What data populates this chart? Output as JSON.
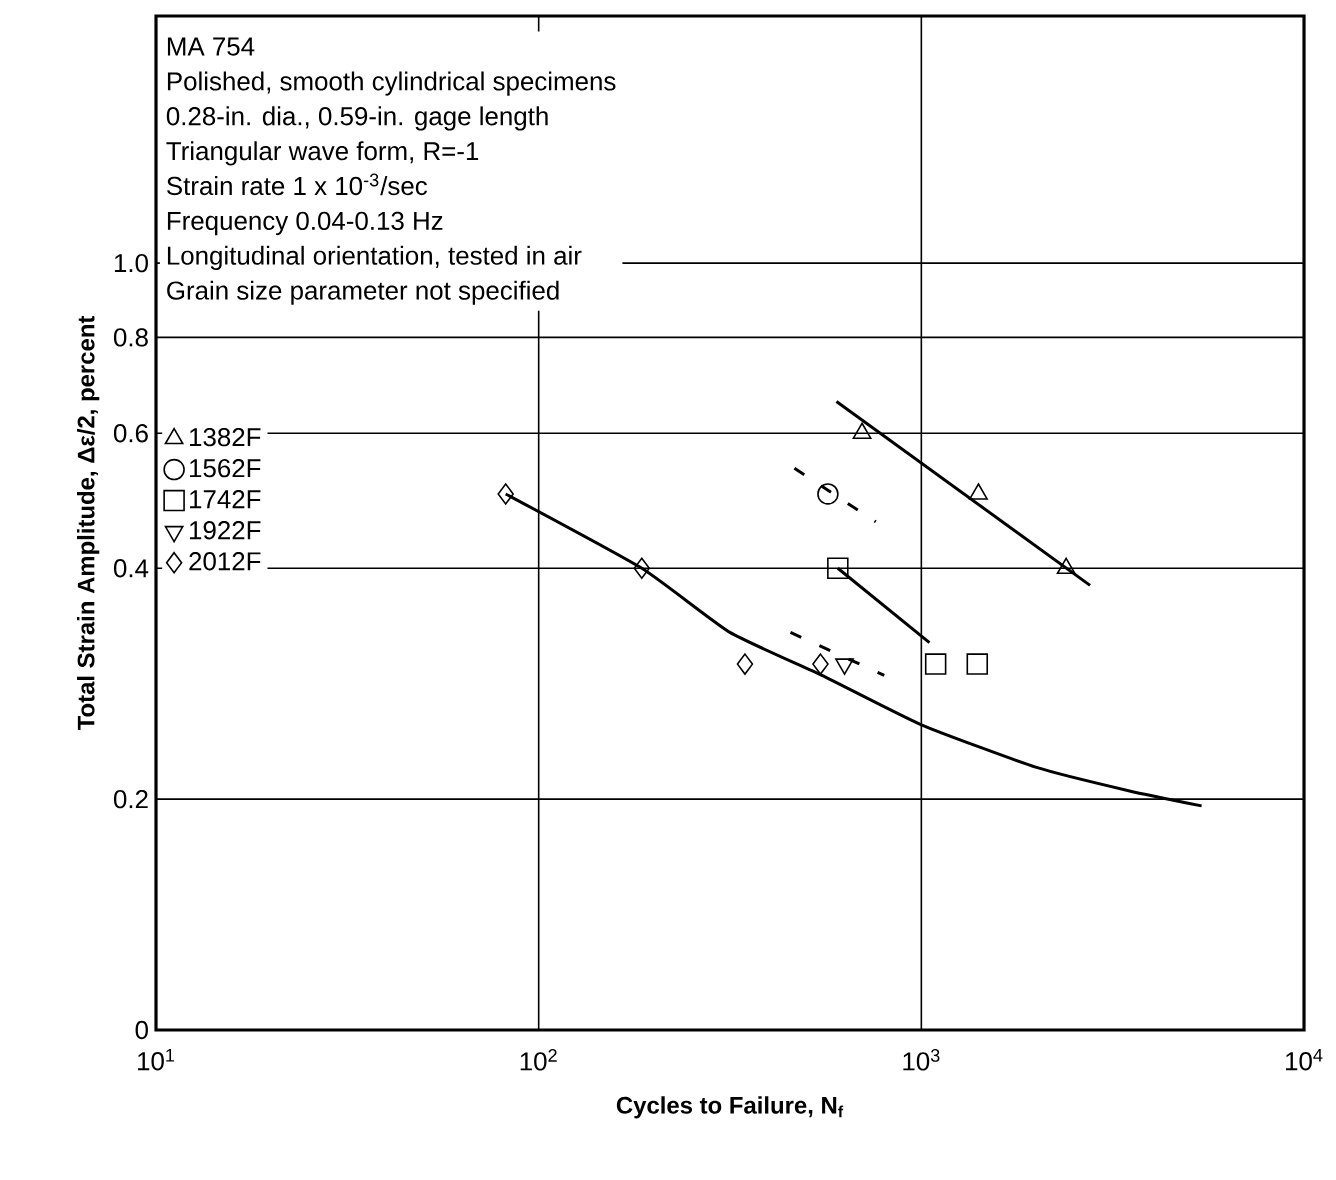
{
  "chart_data": {
    "type": "scatter",
    "xlabel": "Cycles to Failure, N$_{f}$",
    "ylabel": "Total Strain Amplitude, Δε/2, percent",
    "annotations": [
      "MA 754",
      "Polished, smooth cylindrical specimens",
      "0.28-in. dia., 0.59-in. gage length",
      "Triangular wave form, R=-1",
      "Strain rate 1 x 10$^{-3}$/sec",
      "Frequency 0.04-0.13 Hz",
      "Longitudinal orientation, tested in air",
      "Grain size parameter not specified"
    ],
    "log": "xy",
    "grid": true,
    "legend": "top left",
    "xlim": [
      10,
      10000
    ],
    "ylim": [
      0.1,
      2.1
    ],
    "xticks": [
      {
        "value": 10,
        "label": "10$^{1}$"
      },
      {
        "value": 100,
        "label": "10$^{2}$"
      },
      {
        "value": 1000,
        "label": "10$^{3}$"
      },
      {
        "value": 10000,
        "label": "10$^{4}$"
      }
    ],
    "yticks": [
      {
        "value": 0.1,
        "label": "0"
      },
      0.2,
      0.4,
      0.6,
      0.8,
      {
        "value": 1.0,
        "label": "1.0"
      }
    ],
    "series": [
      {
        "name": "1382F",
        "color": "#000000",
        "marker": "triangle",
        "x": [
          700,
          1410,
          2390
        ],
        "values": [
          0.6,
          0.5,
          0.4
        ]
      },
      {
        "name": "1562F",
        "color": "#000000",
        "marker": "circle",
        "x": [
          570
        ],
        "values": [
          0.5
        ]
      },
      {
        "name": "1742F",
        "color": "#000000",
        "marker": "square",
        "x": [
          605,
          1090,
          1400
        ],
        "values": [
          0.4,
          0.3,
          0.3
        ]
      },
      {
        "name": "1922F",
        "color": "#000000",
        "marker": "triangle-down",
        "x": [
          630
        ],
        "values": [
          0.3
        ]
      },
      {
        "name": "2012F",
        "color": "#000000",
        "marker": "diamond",
        "x": [
          82,
          186,
          346,
          545
        ],
        "values": [
          0.5,
          0.4,
          0.3,
          0.3
        ]
      },
      {
        "type": "line",
        "color": "#000000",
        "line_style": "solid",
        "x": [
          600,
          2760
        ],
        "values": [
          0.66,
          0.38
        ]
      },
      {
        "type": "line",
        "color": "#000000",
        "line_style": "dashed",
        "x": [
          466,
          760
        ],
        "values": [
          0.54,
          0.46
        ]
      },
      {
        "type": "line",
        "color": "#000000",
        "line_style": "solid",
        "x": [
          605,
          1050
        ],
        "values": [
          0.4,
          0.32
        ]
      },
      {
        "type": "line",
        "color": "#000000",
        "line_style": "dashed",
        "x": [
          455,
          800
        ],
        "values": [
          0.33,
          0.29
        ]
      },
      {
        "type": "line",
        "color": "#000000",
        "line_style": "solid",
        "x": [
          82,
          186,
          316,
          550,
          1000,
          2000,
          3500,
          5400
        ],
        "values": [
          0.5,
          0.4,
          0.33,
          0.29,
          0.25,
          0.22,
          0.205,
          0.196
        ]
      }
    ]
  }
}
